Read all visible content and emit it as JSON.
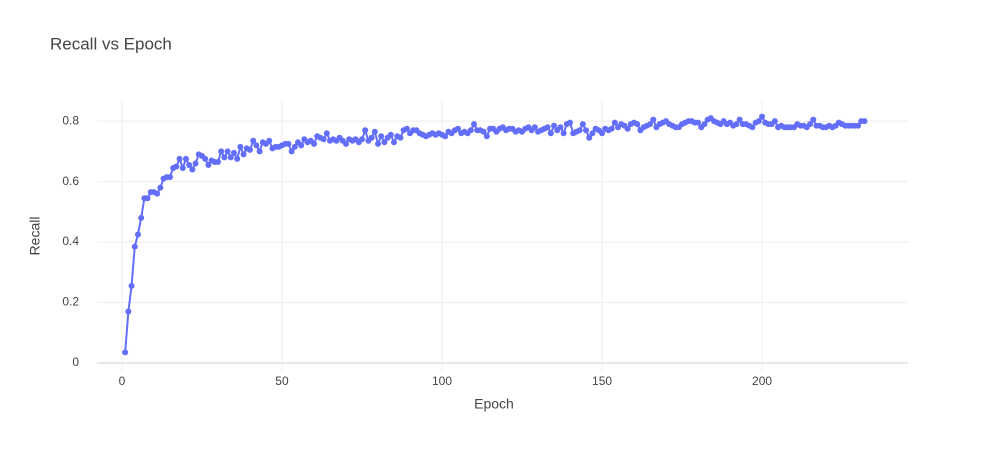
{
  "chart_data": {
    "type": "line",
    "title": "Recall vs Epoch",
    "x_label": "Epoch",
    "y_label": "Recall",
    "color": "#636efa",
    "grid": true,
    "xlim": [
      -7.8,
      245.6
    ],
    "xticks": [
      0,
      50,
      100,
      150,
      200
    ],
    "ylim": [
      -0.03,
      0.87
    ],
    "yticks": [
      0,
      0.2,
      0.4,
      0.6,
      0.8
    ],
    "x": [
      1,
      2,
      3,
      4,
      5,
      6,
      7,
      8,
      9,
      10,
      11,
      12,
      13,
      14,
      15,
      16,
      17,
      18,
      19,
      20,
      21,
      22,
      23,
      24,
      25,
      26,
      27,
      28,
      29,
      30,
      31,
      32,
      33,
      34,
      35,
      36,
      37,
      38,
      39,
      40,
      41,
      42,
      43,
      44,
      45,
      46,
      47,
      48,
      49,
      50,
      51,
      52,
      53,
      54,
      55,
      56,
      57,
      58,
      59,
      60,
      61,
      62,
      63,
      64,
      65,
      66,
      67,
      68,
      69,
      70,
      71,
      72,
      73,
      74,
      75,
      76,
      77,
      78,
      79,
      80,
      81,
      82,
      83,
      84,
      85,
      86,
      87,
      88,
      89,
      90,
      91,
      92,
      93,
      94,
      95,
      96,
      97,
      98,
      99,
      100,
      101,
      102,
      103,
      104,
      105,
      106,
      107,
      108,
      109,
      110,
      111,
      112,
      113,
      114,
      115,
      116,
      117,
      118,
      119,
      120,
      121,
      122,
      123,
      124,
      125,
      126,
      127,
      128,
      129,
      130,
      131,
      132,
      133,
      134,
      135,
      136,
      137,
      138,
      139,
      140,
      141,
      142,
      143,
      144,
      145,
      146,
      147,
      148,
      149,
      150,
      151,
      152,
      153,
      154,
      155,
      156,
      157,
      158,
      159,
      160,
      161,
      162,
      163,
      164,
      165,
      166,
      167,
      168,
      169,
      170,
      171,
      172,
      173,
      174,
      175,
      176,
      177,
      178,
      179,
      180,
      181,
      182,
      183,
      184,
      185,
      186,
      187,
      188,
      189,
      190,
      191,
      192,
      193,
      194,
      195,
      196,
      197,
      198,
      199,
      200,
      201,
      202,
      203,
      204,
      205,
      206,
      207,
      208,
      209,
      210,
      211,
      212,
      213,
      214,
      215,
      216,
      217,
      218,
      219,
      220,
      221,
      222,
      223,
      224,
      225,
      226,
      227,
      228,
      229,
      230,
      231,
      232
    ],
    "values": [
      0.035,
      0.17,
      0.255,
      0.385,
      0.425,
      0.48,
      0.545,
      0.545,
      0.565,
      0.565,
      0.56,
      0.58,
      0.61,
      0.615,
      0.615,
      0.645,
      0.65,
      0.675,
      0.645,
      0.675,
      0.655,
      0.64,
      0.66,
      0.69,
      0.685,
      0.675,
      0.655,
      0.67,
      0.665,
      0.665,
      0.7,
      0.68,
      0.7,
      0.68,
      0.695,
      0.675,
      0.715,
      0.69,
      0.71,
      0.705,
      0.735,
      0.72,
      0.7,
      0.73,
      0.725,
      0.735,
      0.71,
      0.715,
      0.715,
      0.72,
      0.725,
      0.725,
      0.7,
      0.715,
      0.73,
      0.72,
      0.74,
      0.73,
      0.735,
      0.725,
      0.75,
      0.745,
      0.74,
      0.76,
      0.735,
      0.74,
      0.735,
      0.745,
      0.735,
      0.725,
      0.74,
      0.735,
      0.74,
      0.73,
      0.74,
      0.77,
      0.735,
      0.745,
      0.765,
      0.725,
      0.75,
      0.73,
      0.745,
      0.755,
      0.73,
      0.75,
      0.745,
      0.77,
      0.775,
      0.76,
      0.77,
      0.77,
      0.76,
      0.755,
      0.75,
      0.755,
      0.76,
      0.755,
      0.76,
      0.755,
      0.75,
      0.765,
      0.76,
      0.77,
      0.775,
      0.76,
      0.765,
      0.76,
      0.77,
      0.79,
      0.77,
      0.77,
      0.765,
      0.75,
      0.775,
      0.775,
      0.765,
      0.775,
      0.78,
      0.77,
      0.775,
      0.775,
      0.765,
      0.77,
      0.765,
      0.775,
      0.78,
      0.77,
      0.78,
      0.765,
      0.77,
      0.775,
      0.78,
      0.76,
      0.785,
      0.77,
      0.78,
      0.76,
      0.79,
      0.795,
      0.76,
      0.765,
      0.77,
      0.79,
      0.77,
      0.745,
      0.76,
      0.775,
      0.77,
      0.76,
      0.775,
      0.77,
      0.775,
      0.795,
      0.78,
      0.79,
      0.785,
      0.775,
      0.79,
      0.795,
      0.79,
      0.77,
      0.78,
      0.785,
      0.79,
      0.805,
      0.78,
      0.79,
      0.795,
      0.8,
      0.79,
      0.785,
      0.78,
      0.78,
      0.79,
      0.795,
      0.8,
      0.8,
      0.795,
      0.795,
      0.78,
      0.79,
      0.805,
      0.81,
      0.8,
      0.795,
      0.79,
      0.8,
      0.79,
      0.795,
      0.785,
      0.79,
      0.805,
      0.79,
      0.79,
      0.785,
      0.78,
      0.795,
      0.8,
      0.815,
      0.795,
      0.79,
      0.79,
      0.8,
      0.78,
      0.785,
      0.78,
      0.78,
      0.78,
      0.78,
      0.79,
      0.785,
      0.785,
      0.78,
      0.79,
      0.805,
      0.785,
      0.785,
      0.78,
      0.78,
      0.785,
      0.78,
      0.785,
      0.795,
      0.79,
      0.785,
      0.785,
      0.785,
      0.785,
      0.785,
      0.8,
      0.8
    ]
  }
}
